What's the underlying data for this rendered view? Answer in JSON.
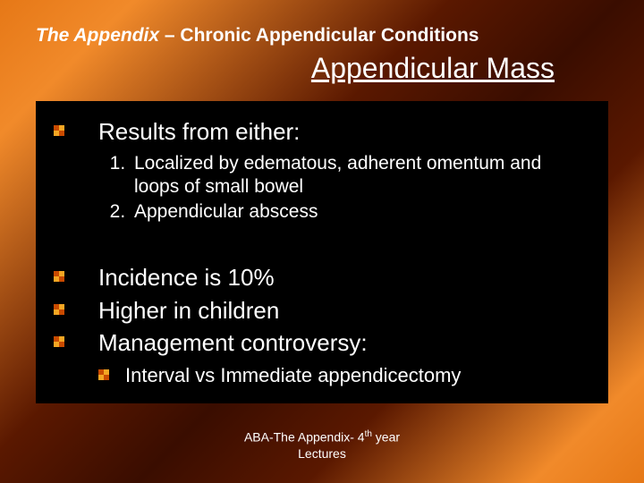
{
  "header": {
    "italic_part": "The Appendix",
    "dash": " – ",
    "rest": "Chronic Appendicular Conditions"
  },
  "title": "Appendicular Mass",
  "bullets_top": [
    "Results from either:"
  ],
  "numbered": [
    "Localized by edematous, adherent omentum and loops of small bowel",
    "Appendicular abscess"
  ],
  "bullets_mid": [
    "Incidence is 10%",
    "Higher in children",
    "Management controversy:"
  ],
  "sub_bullets": [
    "Interval vs Immediate appendicectomy"
  ],
  "footer": {
    "line1_pre": "ABA-The Appendix- 4",
    "line1_sup": "th",
    "line1_post": " year",
    "line2": "Lectures"
  },
  "colors": {
    "text": "#ffffff",
    "bg_block": "#000000",
    "bullet_dark": "#c94a00",
    "bullet_light": "#f5a623"
  },
  "typography": {
    "header_fontsize": 21,
    "title_fontsize": 32,
    "lvl1_fontsize": 26,
    "numlist_fontsize": 21,
    "lvl2_fontsize": 22,
    "footer_fontsize": 14
  }
}
